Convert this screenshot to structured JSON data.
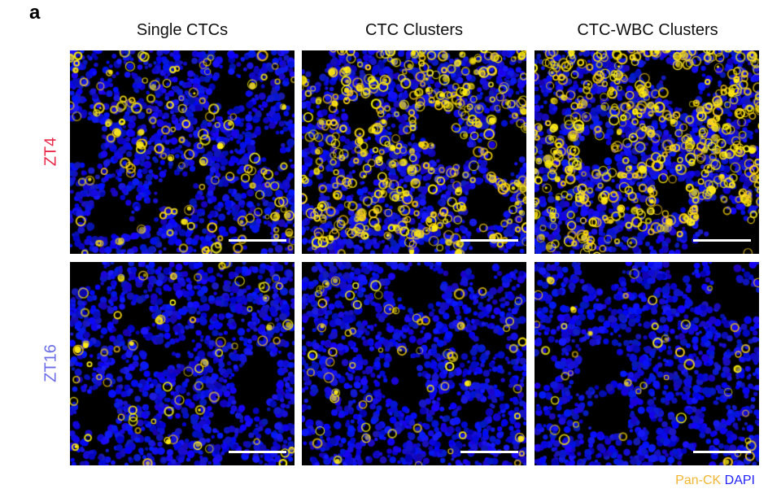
{
  "figure": {
    "panel_label": "a",
    "columns": [
      {
        "title": "Single CTCs"
      },
      {
        "title": "CTC Clusters"
      },
      {
        "title": "CTC-WBC Clusters"
      }
    ],
    "rows": [
      {
        "label": "ZT4",
        "color": "#e8294a"
      },
      {
        "label": "ZT16",
        "color": "#6c6ee8"
      }
    ],
    "legend": {
      "pan_ck": "Pan-CK",
      "dapi": "DAPI",
      "pan_ck_color": "#f2b531",
      "dapi_color": "#2222ff"
    },
    "tiles": [
      {
        "row": 0,
        "col": 0,
        "yellow_density": 0.18
      },
      {
        "row": 0,
        "col": 1,
        "yellow_density": 0.55
      },
      {
        "row": 0,
        "col": 2,
        "yellow_density": 0.65
      },
      {
        "row": 1,
        "col": 0,
        "yellow_density": 0.08
      },
      {
        "row": 1,
        "col": 1,
        "yellow_density": 0.08
      },
      {
        "row": 1,
        "col": 2,
        "yellow_density": 0.06
      }
    ]
  }
}
